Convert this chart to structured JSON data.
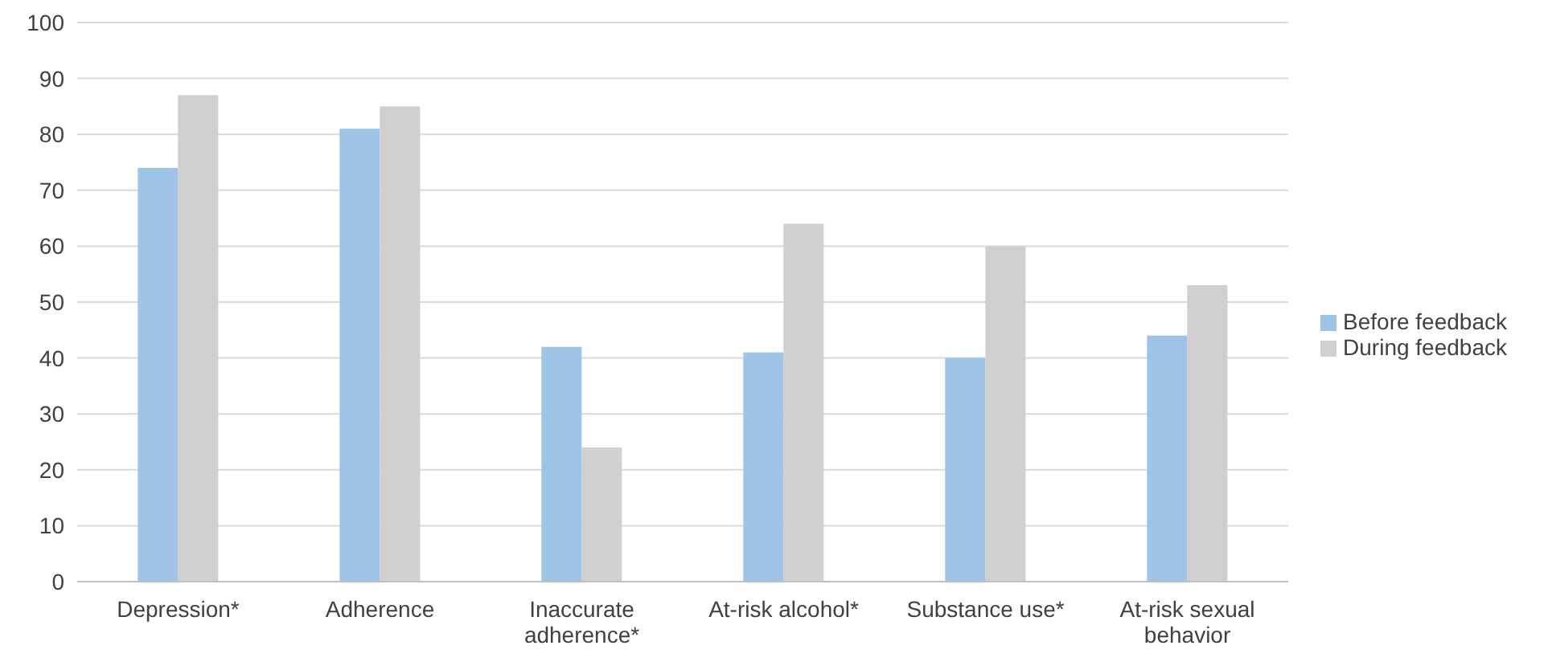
{
  "chart_data": {
    "type": "bar",
    "categories": [
      "Depression*",
      "Adherence",
      "Inaccurate adherence*",
      "At-risk alcohol*",
      "Substance use*",
      "At-risk sexual behavior"
    ],
    "series": [
      {
        "name": "Before feedback",
        "color": "#9dc3e6",
        "values": [
          74,
          81,
          42,
          41,
          40,
          44
        ]
      },
      {
        "name": "During feedback",
        "color": "#d0cece",
        "values": [
          87,
          85,
          24,
          64,
          60,
          53
        ]
      }
    ],
    "ylim": [
      0,
      100
    ],
    "yticks": [
      0,
      10,
      20,
      30,
      40,
      50,
      60,
      70,
      80,
      90,
      100
    ],
    "grid": "y",
    "legend": "right"
  }
}
